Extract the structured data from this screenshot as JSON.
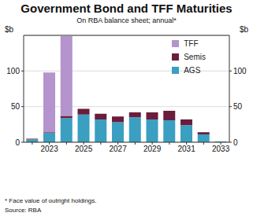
{
  "chart_data": {
    "type": "bar",
    "title": "Government Bond and TFF Maturities",
    "subtitle": "On RBA balance sheet; annual*",
    "ylabel": "$b",
    "notes": [
      "* Face value of outright holdings.",
      "Source: RBA"
    ],
    "categories": [
      null,
      "2023",
      null,
      "2025",
      null,
      "2027",
      null,
      "2029",
      null,
      "2031",
      null,
      "2033"
    ],
    "series": [
      {
        "name": "AGS",
        "color": "#3a9fc0",
        "values": [
          4,
          13,
          34,
          39,
          32,
          28,
          35,
          32,
          31,
          24,
          11,
          1
        ]
      },
      {
        "name": "Semis",
        "color": "#6b1d3c",
        "values": [
          1,
          1,
          3,
          8,
          8,
          8,
          7,
          10,
          13,
          8,
          3,
          0
        ]
      },
      {
        "name": "TFF",
        "color": "#b593cc",
        "values": [
          0,
          84,
          112,
          0,
          0,
          0,
          0,
          0,
          0,
          0,
          0,
          0
        ]
      }
    ],
    "ylim": [
      0,
      150
    ],
    "yticks": [
      0,
      50,
      100
    ],
    "stacked": true,
    "grid": true,
    "legend": "top-right"
  }
}
